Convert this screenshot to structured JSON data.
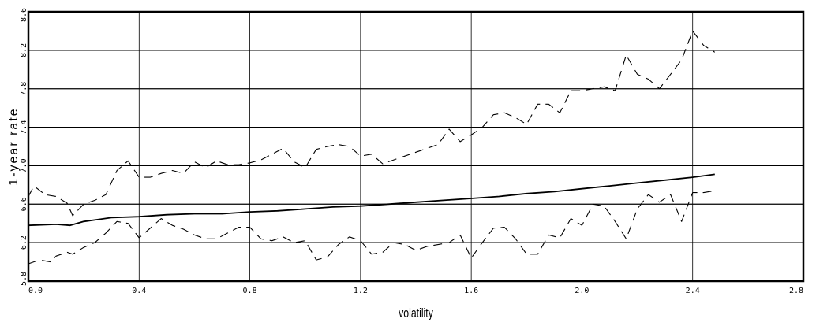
{
  "chart_data": {
    "type": "line",
    "title": "",
    "xlabel": "volatility",
    "ylabel": "1-year rate",
    "xlim": [
      0.0,
      2.8
    ],
    "ylim": [
      5.8,
      8.6
    ],
    "xticks": [
      "0.0",
      "0.4",
      "0.8",
      "1.2",
      "1.6",
      "2.0",
      "2.4",
      "2.8"
    ],
    "yticks": [
      "5.8",
      "6.2",
      "6.6",
      "7.0",
      "7.4",
      "7.8",
      "8.2",
      "8.6"
    ],
    "grid": true,
    "legend": "none",
    "series": [
      {
        "style": "solid",
        "x": [
          0.0,
          0.1,
          0.15,
          0.2,
          0.3,
          0.4,
          0.5,
          0.6,
          0.7,
          0.8,
          0.9,
          1.0,
          1.1,
          1.2,
          1.3,
          1.4,
          1.5,
          1.6,
          1.7,
          1.8,
          1.9,
          2.0,
          2.1,
          2.2,
          2.3,
          2.4,
          2.48
        ],
        "y": [
          6.38,
          6.39,
          6.38,
          6.42,
          6.46,
          6.47,
          6.49,
          6.5,
          6.5,
          6.52,
          6.53,
          6.55,
          6.57,
          6.58,
          6.6,
          6.62,
          6.64,
          6.66,
          6.68,
          6.71,
          6.73,
          6.76,
          6.79,
          6.82,
          6.85,
          6.88,
          6.91
        ]
      },
      {
        "style": "dashed",
        "x": [
          0.0,
          0.02,
          0.06,
          0.1,
          0.14,
          0.16,
          0.2,
          0.24,
          0.28,
          0.32,
          0.36,
          0.4,
          0.44,
          0.48,
          0.52,
          0.56,
          0.6,
          0.64,
          0.68,
          0.72,
          0.76,
          0.8,
          0.84,
          0.88,
          0.92,
          0.96,
          1.0,
          1.04,
          1.08,
          1.12,
          1.16,
          1.2,
          1.24,
          1.28,
          1.32,
          1.36,
          1.4,
          1.44,
          1.48,
          1.52,
          1.56,
          1.6,
          1.64,
          1.68,
          1.72,
          1.76,
          1.8,
          1.84,
          1.88,
          1.92,
          1.96,
          2.0,
          2.04,
          2.08,
          2.12,
          2.16,
          2.2,
          2.24,
          2.28,
          2.32,
          2.36,
          2.4,
          2.44,
          2.48
        ],
        "y": [
          6.68,
          6.79,
          6.7,
          6.68,
          6.61,
          6.48,
          6.6,
          6.64,
          6.7,
          6.95,
          7.05,
          6.88,
          6.88,
          6.92,
          6.95,
          6.92,
          7.04,
          6.98,
          7.05,
          7.01,
          7.01,
          7.03,
          7.06,
          7.12,
          7.18,
          7.04,
          6.98,
          7.17,
          7.2,
          7.22,
          7.2,
          7.1,
          7.12,
          7.02,
          7.06,
          7.1,
          7.14,
          7.18,
          7.22,
          7.38,
          7.25,
          7.32,
          7.4,
          7.53,
          7.55,
          7.5,
          7.43,
          7.64,
          7.64,
          7.55,
          7.78,
          7.78,
          7.8,
          7.82,
          7.78,
          8.15,
          7.95,
          7.9,
          7.8,
          7.95,
          8.1,
          8.4,
          8.25,
          8.18
        ]
      },
      {
        "style": "dashed",
        "x": [
          0.0,
          0.04,
          0.08,
          0.1,
          0.14,
          0.16,
          0.2,
          0.24,
          0.28,
          0.32,
          0.36,
          0.4,
          0.44,
          0.48,
          0.52,
          0.56,
          0.6,
          0.64,
          0.68,
          0.72,
          0.76,
          0.8,
          0.84,
          0.88,
          0.92,
          0.96,
          1.0,
          1.04,
          1.08,
          1.12,
          1.16,
          1.2,
          1.24,
          1.28,
          1.32,
          1.36,
          1.4,
          1.44,
          1.48,
          1.52,
          1.56,
          1.6,
          1.64,
          1.68,
          1.72,
          1.76,
          1.8,
          1.84,
          1.88,
          1.92,
          1.96,
          2.0,
          2.04,
          2.08,
          2.12,
          2.16,
          2.2,
          2.24,
          2.28,
          2.32,
          2.36,
          2.4,
          2.44,
          2.48
        ],
        "y": [
          5.98,
          6.02,
          6.0,
          6.06,
          6.1,
          6.08,
          6.15,
          6.2,
          6.3,
          6.42,
          6.4,
          6.25,
          6.35,
          6.45,
          6.38,
          6.34,
          6.28,
          6.24,
          6.24,
          6.3,
          6.36,
          6.36,
          6.24,
          6.22,
          6.26,
          6.2,
          6.22,
          6.02,
          6.05,
          6.18,
          6.26,
          6.22,
          6.08,
          6.1,
          6.2,
          6.18,
          6.12,
          6.16,
          6.18,
          6.2,
          6.28,
          6.04,
          6.2,
          6.35,
          6.36,
          6.24,
          6.08,
          6.08,
          6.28,
          6.25,
          6.45,
          6.38,
          6.6,
          6.58,
          6.42,
          6.24,
          6.55,
          6.7,
          6.62,
          6.7,
          6.42,
          6.72,
          6.72,
          6.74
        ]
      }
    ]
  }
}
